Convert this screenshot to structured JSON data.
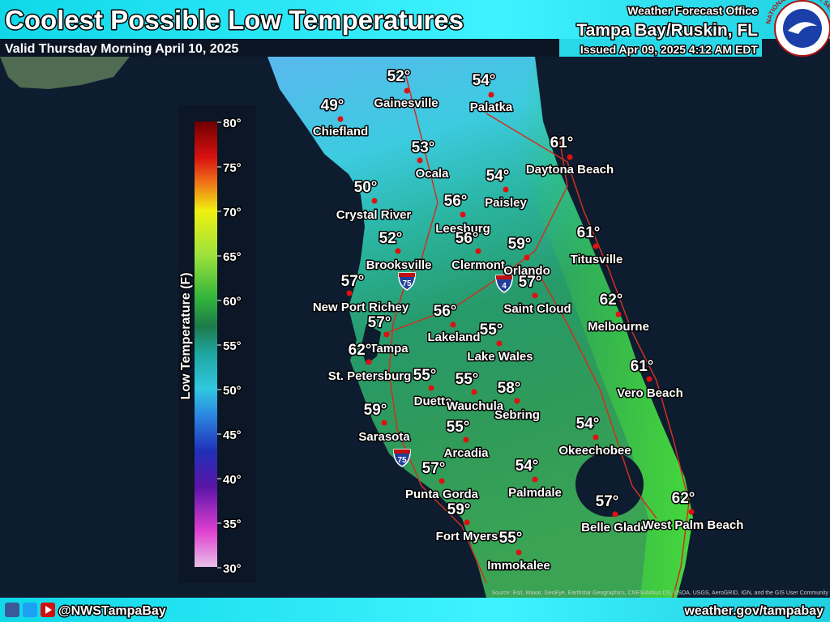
{
  "header": {
    "title": "Coolest Possible Low Temperatures",
    "valid": "Valid Thursday Morning April 10, 2025",
    "office_line": "Weather Forecast Office",
    "office": "Tampa Bay/Ruskin, FL",
    "issued": "Issued Apr 09, 2025 4:12 AM EDT"
  },
  "logo_text": "NATIONAL WEATHER SERVICE",
  "legend": {
    "title": "Low Temperature (F)",
    "ticks": [
      "80°",
      "75°",
      "70°",
      "65°",
      "60°",
      "55°",
      "50°",
      "45°",
      "40°",
      "35°",
      "30°"
    ]
  },
  "cities": [
    {
      "name": "Gainesville",
      "temp": "52°"
    },
    {
      "name": "Palatka",
      "temp": "54°"
    },
    {
      "name": "Chiefland",
      "temp": "49°"
    },
    {
      "name": "Ocala",
      "temp": "53°"
    },
    {
      "name": "Daytona Beach",
      "temp": "61°"
    },
    {
      "name": "Paisley",
      "temp": "54°"
    },
    {
      "name": "Crystal River",
      "temp": "50°"
    },
    {
      "name": "Leesburg",
      "temp": "56°"
    },
    {
      "name": "Clermont",
      "temp": "56°"
    },
    {
      "name": "Orlando",
      "temp": "59°"
    },
    {
      "name": "Titusville",
      "temp": "61°"
    },
    {
      "name": "Brooksville",
      "temp": "52°"
    },
    {
      "name": "New Port Richey",
      "temp": "57°"
    },
    {
      "name": "Saint Cloud",
      "temp": "57°"
    },
    {
      "name": "Melbourne",
      "temp": "62°"
    },
    {
      "name": "Lakeland",
      "temp": "56°"
    },
    {
      "name": "Tampa",
      "temp": "57°"
    },
    {
      "name": "Lake Wales",
      "temp": "55°"
    },
    {
      "name": "St. Petersburg",
      "temp": "62°"
    },
    {
      "name": "Vero Beach",
      "temp": "61°"
    },
    {
      "name": "Duette",
      "temp": "55°"
    },
    {
      "name": "Wauchula",
      "temp": "55°"
    },
    {
      "name": "Sebring",
      "temp": "58°"
    },
    {
      "name": "Sarasota",
      "temp": "59°"
    },
    {
      "name": "Okeechobee",
      "temp": "54°"
    },
    {
      "name": "Arcadia",
      "temp": "55°"
    },
    {
      "name": "Palmdale",
      "temp": "54°"
    },
    {
      "name": "Punta Gorda",
      "temp": "57°"
    },
    {
      "name": "Belle Glade",
      "temp": "57°"
    },
    {
      "name": "West Palm Beach",
      "temp": "62°"
    },
    {
      "name": "Fort Myers",
      "temp": "59°"
    },
    {
      "name": "Immokalee",
      "temp": "55°"
    }
  ],
  "interstates": [
    "75",
    "4",
    "75"
  ],
  "attribution": "Source: Esri, Maxar, GeoEye, Earthstar Geographics, CNES/Airbus DS, USDA, USGS, AeroGRID, IGN, and the GIS User Community",
  "footer": {
    "handle": "@NWSTampaBay",
    "website": "weather.gov/tampabay"
  }
}
